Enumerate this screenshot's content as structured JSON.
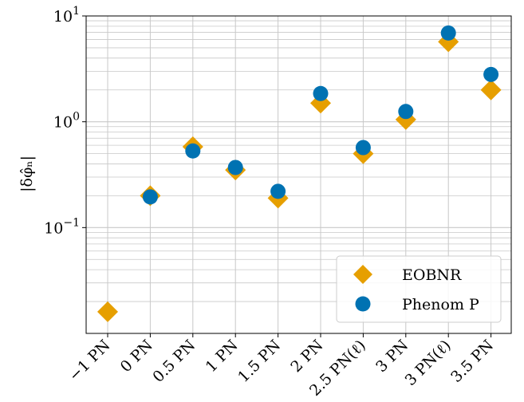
{
  "chart_data": {
    "type": "scatter",
    "title": "",
    "xlabel": "",
    "ylabel": "|δφ̂ₙ|",
    "yscale": "log",
    "ylim": [
      0.01,
      10
    ],
    "grid": true,
    "legend_position": "lower-right",
    "categories": [
      "−1 PN",
      "0 PN",
      "0.5 PN",
      "1 PN",
      "1.5 PN",
      "2 PN",
      "2.5 PN(ℓ)",
      "3 PN",
      "3 PN(ℓ)",
      "3.5 PN"
    ],
    "y_ticks": [
      {
        "value": 10,
        "base": "10",
        "exp": "1"
      },
      {
        "value": 1,
        "base": "10",
        "exp": "0"
      },
      {
        "value": 0.1,
        "base": "10",
        "exp": "−1"
      }
    ],
    "series": [
      {
        "name": "EOBNR",
        "marker": "diamond",
        "color": "#E69F00",
        "values": [
          0.016,
          0.2,
          0.58,
          0.35,
          0.19,
          1.5,
          0.5,
          1.05,
          5.7,
          2.0
        ]
      },
      {
        "name": "Phenom P",
        "marker": "circle",
        "color": "#0072B2",
        "values": [
          null,
          0.195,
          0.53,
          0.37,
          0.22,
          1.85,
          0.57,
          1.25,
          6.9,
          2.8
        ]
      }
    ]
  }
}
